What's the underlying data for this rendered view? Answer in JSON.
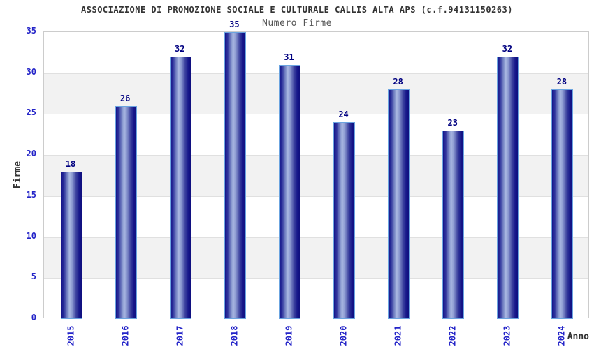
{
  "header": {
    "title": "ASSOCIAZIONE DI PROMOZIONE SOCIALE E CULTURALE CALLIS ALTA APS (c.f.94131150263)",
    "subtitle": "Numero Firme"
  },
  "chart_data": {
    "type": "bar",
    "title": "ASSOCIAZIONE DI PROMOZIONE SOCIALE E CULTURALE CALLIS ALTA APS (c.f.94131150263)",
    "subtitle": "Numero Firme",
    "categories": [
      "2015",
      "2016",
      "2017",
      "2018",
      "2019",
      "2020",
      "2021",
      "2022",
      "2023",
      "2024"
    ],
    "values": [
      18,
      26,
      32,
      35,
      31,
      24,
      28,
      23,
      32,
      28
    ],
    "xlabel": "Anno",
    "ylabel": "Firme",
    "ylim": [
      0,
      35
    ],
    "yticks": [
      0,
      5,
      10,
      15,
      20,
      25,
      30,
      35
    ],
    "grid": "alternating horizontal bands every 5 units",
    "legend": "none"
  },
  "colors": {
    "title": "#333333",
    "subtitle": "#555555",
    "tick_labels": "#2424c8",
    "value_labels": "#000080",
    "axis_titles": "#333333",
    "bar_dark": "#14148a",
    "bar_light": "#aab8e2",
    "bar_border": "#6ba4e0",
    "band_gray": "#f2f2f2",
    "plot_border": "#cccccc"
  }
}
